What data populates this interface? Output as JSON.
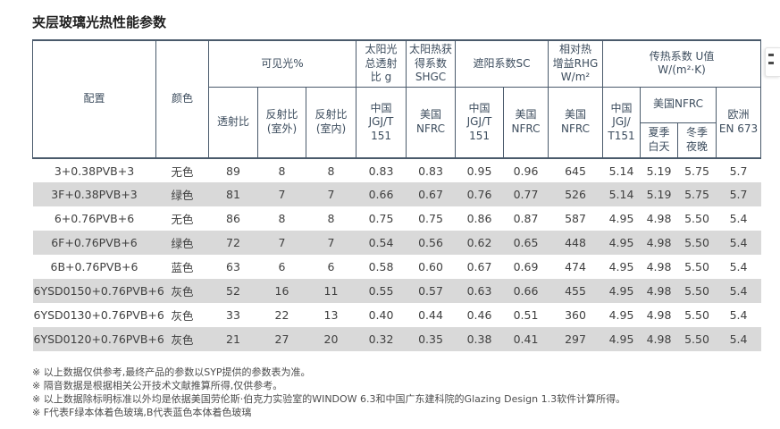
{
  "page": {
    "title": "夹层玻璃光热性能参数"
  },
  "colors": {
    "table_line": "#4a5a6b",
    "row_stripe": "#d9d9d9",
    "header_text": "#3d4d5e",
    "body_text": "#404040"
  },
  "table": {
    "header": {
      "config": "配置",
      "color": "颜色",
      "visible_group": "可见光%",
      "solar_g_group": "太阳光\n总透射\n比 g",
      "shgc_group": "太阳热获\n得系数\nSHGC",
      "sc_group": "遮阳系数SC",
      "rhg_group": "相对热\n增益RHG\nW/m²",
      "u_group": "传热系数 U值\nW/(m²·K)",
      "transmittance": "透射比",
      "reflect_out": "反射比\n(室外)",
      "reflect_in": "反射比\n(室内)",
      "g_china": "中国\nJGJ/T\n151",
      "shgc_us": "美国\nNFRC",
      "sc_china": "中国\nJGJ/T\n151",
      "sc_us": "美国\nNFRC",
      "rhg_us": "美国\nNFRC",
      "u_china": "中国\nJGJ/\nT151",
      "u_us": "美国NFRC",
      "u_eu": "欧洲\nEN 673",
      "u_summer": "夏季\n白天",
      "u_winter": "冬季\n夜晚"
    },
    "rows": [
      [
        "3+0.38PVB+3",
        "无色",
        "89",
        "8",
        "8",
        "0.83",
        "0.83",
        "0.95",
        "0.96",
        "645",
        "5.14",
        "5.19",
        "5.75",
        "5.7"
      ],
      [
        "3F+0.38PVB+3",
        "绿色",
        "81",
        "7",
        "7",
        "0.66",
        "0.67",
        "0.76",
        "0.77",
        "526",
        "5.14",
        "5.19",
        "5.75",
        "5.7"
      ],
      [
        "6+0.76PVB+6",
        "无色",
        "86",
        "8",
        "8",
        "0.75",
        "0.75",
        "0.86",
        "0.87",
        "587",
        "4.95",
        "4.98",
        "5.50",
        "5.4"
      ],
      [
        "6F+0.76PVB+6",
        "绿色",
        "72",
        "7",
        "7",
        "0.54",
        "0.56",
        "0.62",
        "0.65",
        "448",
        "4.95",
        "4.98",
        "5.50",
        "5.4"
      ],
      [
        "6B+0.76PVB+6",
        "蓝色",
        "63",
        "6",
        "6",
        "0.58",
        "0.60",
        "0.67",
        "0.69",
        "474",
        "4.95",
        "4.98",
        "5.50",
        "5.4"
      ],
      [
        "6YSD0150+0.76PVB+6",
        "灰色",
        "52",
        "16",
        "11",
        "0.55",
        "0.57",
        "0.63",
        "0.66",
        "455",
        "4.95",
        "4.98",
        "5.50",
        "5.4"
      ],
      [
        "6YSD0130+0.76PVB+6",
        "灰色",
        "33",
        "22",
        "13",
        "0.40",
        "0.44",
        "0.46",
        "0.51",
        "360",
        "4.95",
        "4.98",
        "5.50",
        "5.4"
      ],
      [
        "6YSD0120+0.76PVB+6",
        "灰色",
        "21",
        "27",
        "20",
        "0.32",
        "0.35",
        "0.38",
        "0.41",
        "297",
        "4.95",
        "4.98",
        "5.50",
        "5.4"
      ]
    ]
  },
  "footnotes": [
    "※ 以上数据仅供参考,最终产品的参数以SYP提供的参数表为准。",
    "※ 隔音数据是根据相关公开技术文献推算所得,仅供参考。",
    "※ 以上数据除标明标准以外均是依据美国劳伦斯·伯克力实验室的WINDOW 6.3和中国广东建科院的Glazing Design 1.3软件计算所得。",
    "※ F代表F绿本体着色玻璃,B代表蓝色本体着色玻璃"
  ]
}
